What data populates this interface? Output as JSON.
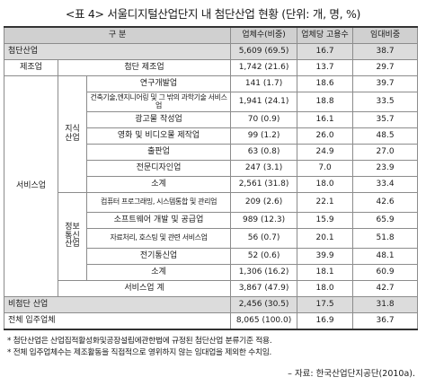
{
  "title": "<표 4> 서울디지털산업단지 내 첨단산업 현황 (단위: 개, 명, %)",
  "headers": {
    "category": "구 분",
    "firms": "업체수(비중)",
    "emp_per_firm": "업체당 고용수",
    "rent_ratio": "임대비중"
  },
  "rows": {
    "hightech": {
      "label": "첨단산업",
      "firms": "5,609 (69.5)",
      "emp": "16.7",
      "rent": "38.7"
    },
    "manufacturing": {
      "group": "제조업",
      "label": "첨단 제조업",
      "firms": "1,742 (21.6)",
      "emp": "13.7",
      "rent": "29.7"
    },
    "services_label": "서비스업",
    "knowledge_label": "지식\n산업",
    "info_label": "정보\n통신\n산업",
    "knowledge": [
      {
        "label": "연구개발업",
        "firms": "141 (1.7)",
        "emp": "18.6",
        "rent": "39.7"
      },
      {
        "label": "건축기술,엔지니어링 및 그 밖의 과학기술 서비스업",
        "firms": "1,941 (24.1)",
        "emp": "18.8",
        "rent": "33.5"
      },
      {
        "label": "광고물 작성업",
        "firms": "70 (0.9)",
        "emp": "16.1",
        "rent": "35.7"
      },
      {
        "label": "영화 및 비디오물 제작업",
        "firms": "99 (1.2)",
        "emp": "26.0",
        "rent": "48.5"
      },
      {
        "label": "출판업",
        "firms": "63 (0.8)",
        "emp": "24.9",
        "rent": "27.0"
      },
      {
        "label": "전문디자인업",
        "firms": "247 (3.1)",
        "emp": "7.0",
        "rent": "23.9"
      },
      {
        "label": "소계",
        "firms": "2,561 (31.8)",
        "emp": "18.0",
        "rent": "33.4"
      }
    ],
    "info": [
      {
        "label": "컴퓨터 프로그래밍, 시스템통합 및 관리업",
        "firms": "209 (2.6)",
        "emp": "22.1",
        "rent": "42.6"
      },
      {
        "label": "소프트웨어 개발 및 공급업",
        "firms": "989 (12.3)",
        "emp": "15.9",
        "rent": "65.9"
      },
      {
        "label": "자료처리, 호스팅 및 관련 서비스업",
        "firms": "56 (0.7)",
        "emp": "20.1",
        "rent": "51.8"
      },
      {
        "label": "전기통신업",
        "firms": "52 (0.6)",
        "emp": "39.9",
        "rent": "48.1"
      },
      {
        "label": "소계",
        "firms": "1,306 (16.2)",
        "emp": "18.1",
        "rent": "60.9"
      }
    ],
    "service_total": {
      "label": "서비스업 계",
      "firms": "3,867 (47.9)",
      "emp": "18.0",
      "rent": "42.7"
    },
    "nonhightech": {
      "label": "비첨단 산업",
      "firms": "2,456 (30.5)",
      "emp": "17.5",
      "rent": "31.8"
    },
    "total": {
      "label": "전체 입주업체",
      "firms": "8,065 (100.0)",
      "emp": "16.9",
      "rent": "36.7"
    }
  },
  "notes": [
    "* 첨단산업은 산업집적활성화및공장설립에관한법에 규정된 첨단산업 분류기준 적용.",
    "* 전체 입주업체수는 제조활동을 직접적으로 영위하지 않는 임대업을 제외한 수치임."
  ],
  "source": "– 자료: 한국산업단지공단(2010a)."
}
